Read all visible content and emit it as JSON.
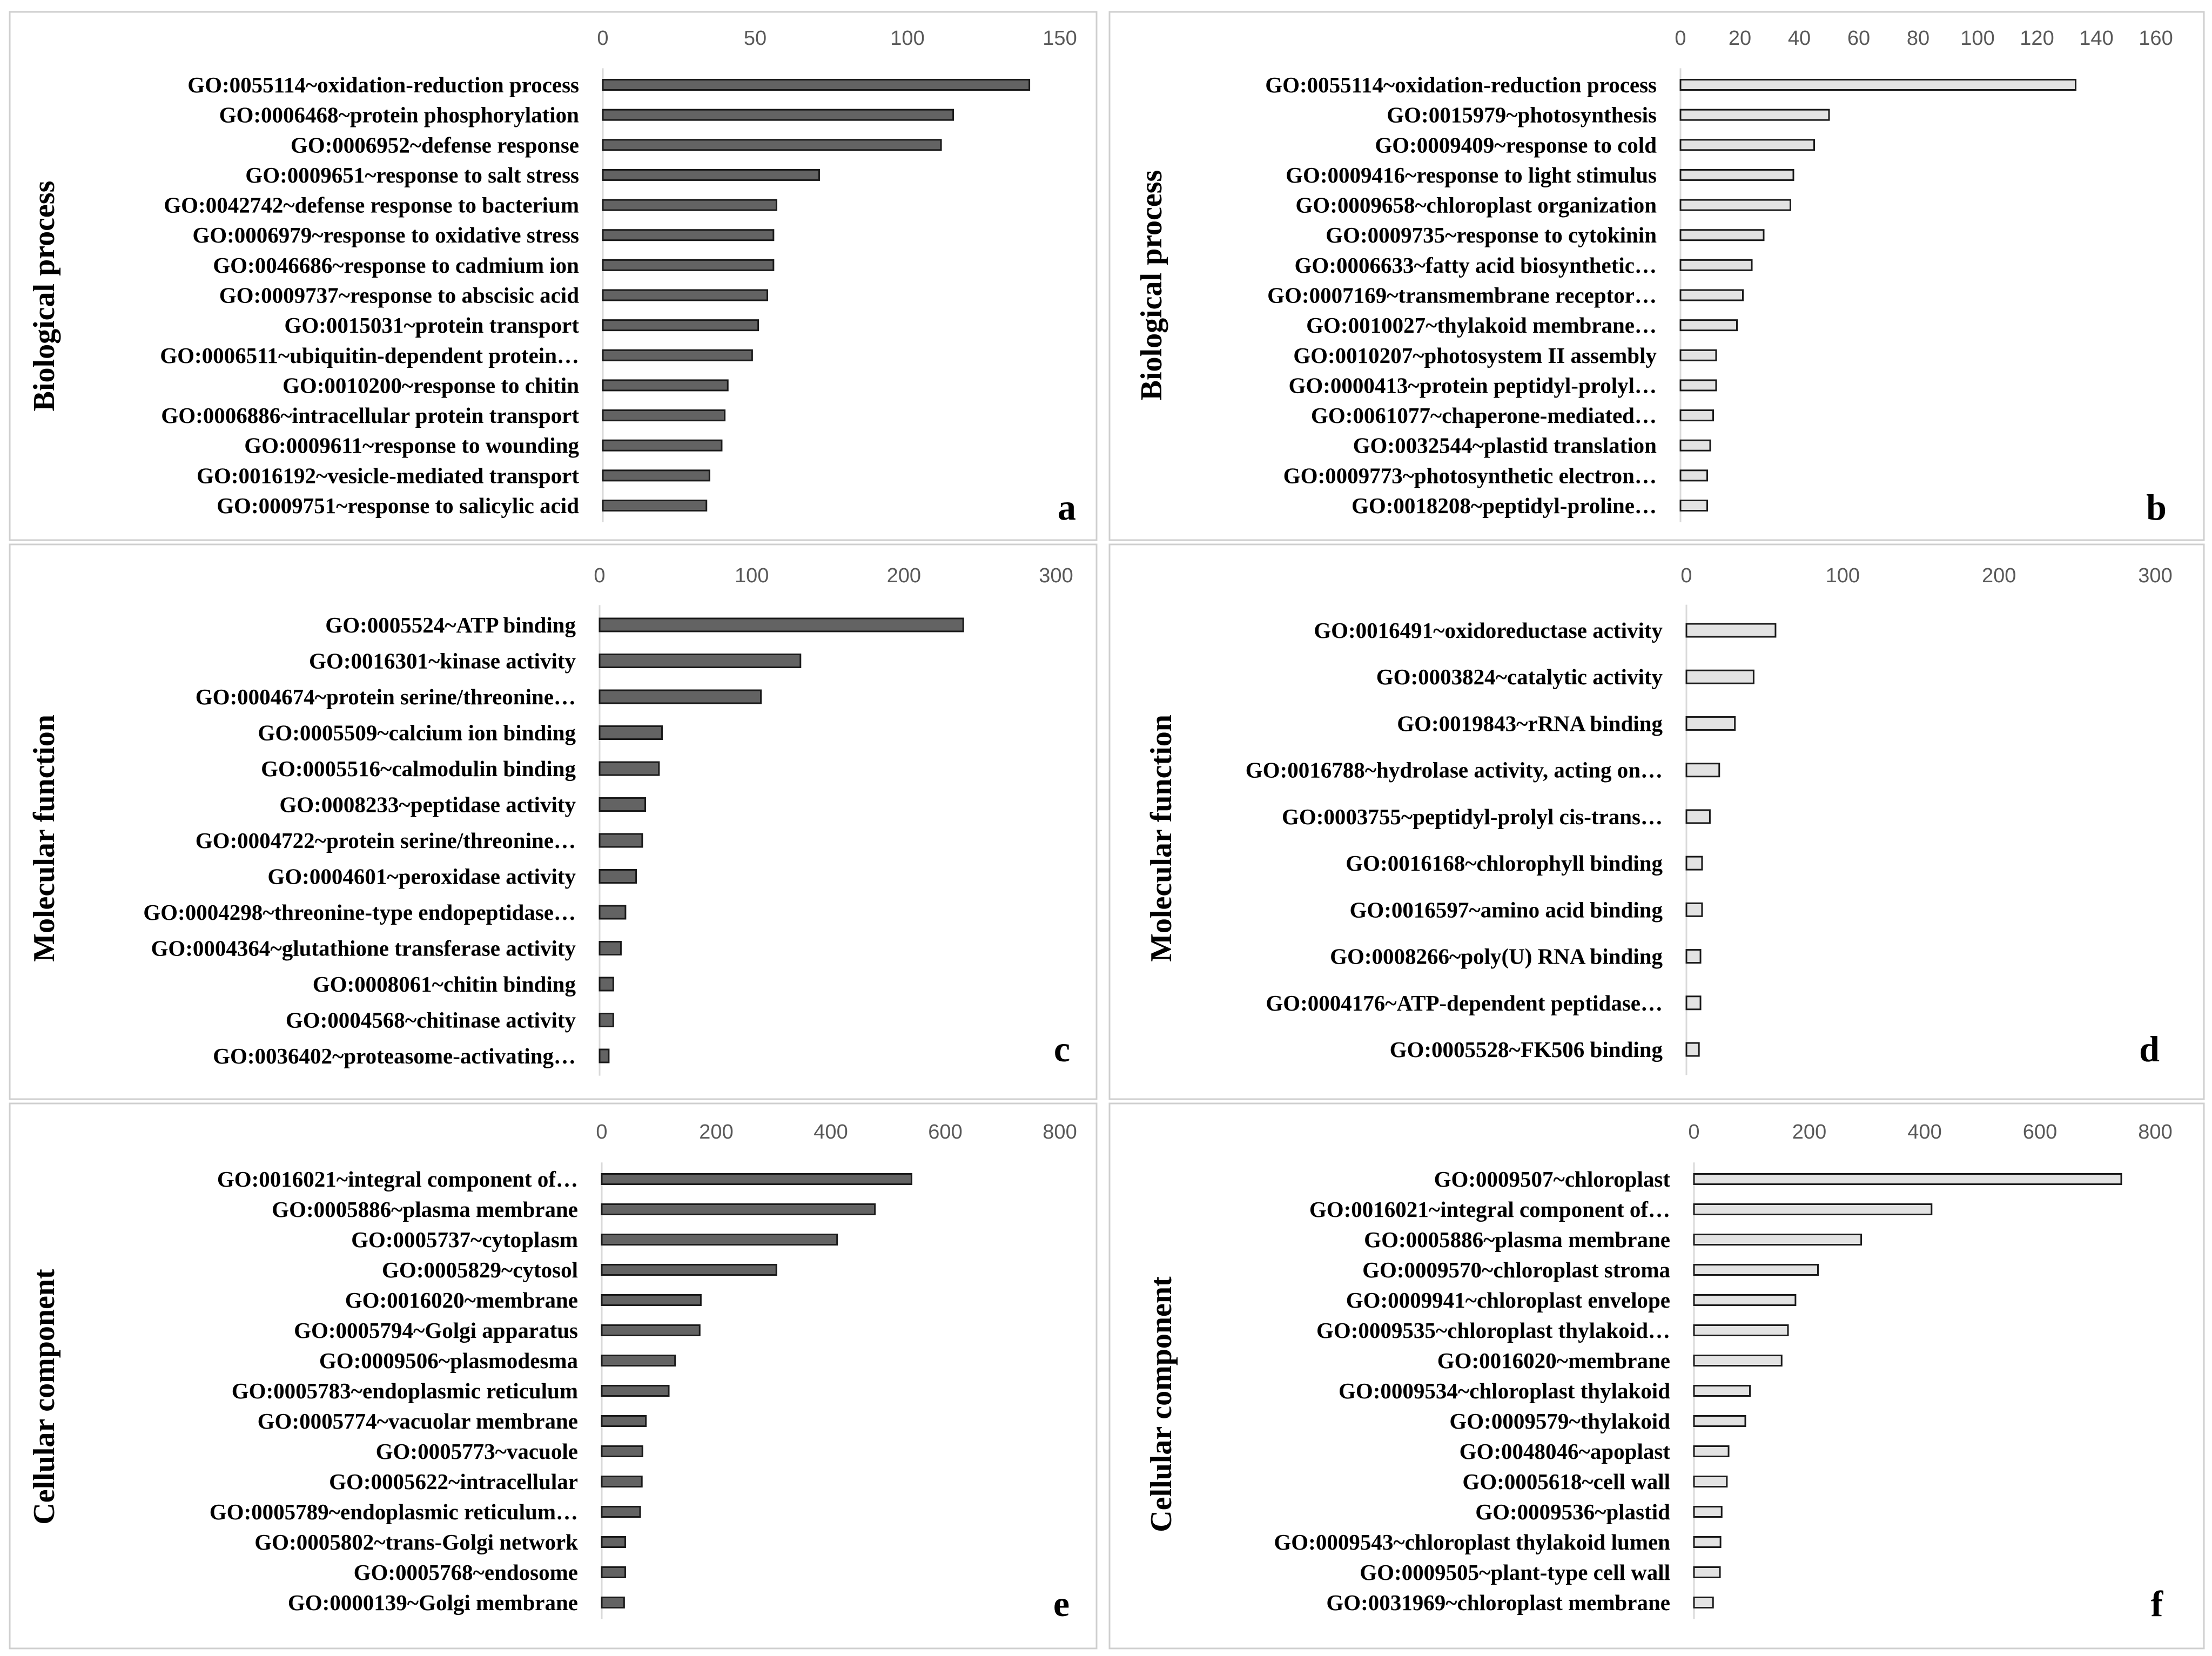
{
  "colors": {
    "dark_bar": "#636363",
    "light_bar": "#e3e3e3",
    "bar_stroke": "#1a1a1a",
    "axis": "#d9d9d9",
    "tick_text": "#595959",
    "panel_border": "#cfcfcf"
  },
  "chart_data": [
    {
      "type": "bar",
      "orientation": "horizontal",
      "panel_label": "a",
      "ylabel": "Biological process",
      "xlim": [
        0,
        150
      ],
      "xticks": [
        0,
        50,
        100,
        150
      ],
      "bar_style": "dark",
      "categories": [
        "GO:0055114~oxidation-reduction process",
        "GO:0006468~protein phosphorylation",
        "GO:0006952~defense response",
        "GO:0009651~response to salt stress",
        "GO:0042742~defense response to bacterium",
        "GO:0006979~response to oxidative stress",
        "GO:0046686~response to cadmium ion",
        "GO:0009737~response to abscisic acid",
        "GO:0015031~protein transport",
        "GO:0006511~ubiquitin-dependent protein…",
        "GO:0010200~response to chitin",
        "GO:0006886~intracellular protein transport",
        "GO:0009611~response to wounding",
        "GO:0016192~vesicle-mediated transport",
        "GO:0009751~response to salicylic acid"
      ],
      "values": [
        140,
        115,
        111,
        71,
        57,
        56,
        56,
        54,
        51,
        49,
        41,
        40,
        39,
        35,
        34
      ]
    },
    {
      "type": "bar",
      "orientation": "horizontal",
      "panel_label": "b",
      "ylabel": "Biological process",
      "xlim": [
        0,
        160
      ],
      "xticks": [
        0,
        20,
        40,
        60,
        80,
        100,
        120,
        140,
        160
      ],
      "bar_style": "light",
      "categories": [
        "GO:0055114~oxidation-reduction process",
        "GO:0015979~photosynthesis",
        "GO:0009409~response to cold",
        "GO:0009416~response to light stimulus",
        "GO:0009658~chloroplast organization",
        "GO:0009735~response to cytokinin",
        "GO:0006633~fatty acid biosynthetic…",
        "GO:0007169~transmembrane receptor…",
        "GO:0010027~thylakoid membrane…",
        "GO:0010207~photosystem II assembly",
        "GO:0000413~protein peptidyl-prolyl…",
        "GO:0061077~chaperone-mediated…",
        "GO:0032544~plastid translation",
        "GO:0009773~photosynthetic electron…",
        "GO:0018208~peptidyl-proline…"
      ],
      "values": [
        133,
        50,
        45,
        38,
        37,
        28,
        24,
        21,
        19,
        12,
        12,
        11,
        10,
        9,
        9
      ]
    },
    {
      "type": "bar",
      "orientation": "horizontal",
      "panel_label": "c",
      "ylabel": "Molecular function",
      "xlim": [
        0,
        300
      ],
      "xticks": [
        0,
        100,
        200,
        300
      ],
      "bar_style": "dark",
      "categories": [
        "GO:0005524~ATP binding",
        "GO:0016301~kinase activity",
        "GO:0004674~protein serine/threonine…",
        "GO:0005509~calcium ion binding",
        "GO:0005516~calmodulin binding",
        "GO:0008233~peptidase activity",
        "GO:0004722~protein serine/threonine…",
        "GO:0004601~peroxidase activity",
        "GO:0004298~threonine-type endopeptidase…",
        "GO:0004364~glutathione transferase activity",
        "GO:0008061~chitin binding",
        "GO:0004568~chitinase activity",
        "GO:0036402~proteasome-activating…"
      ],
      "values": [
        239,
        132,
        106,
        41,
        39,
        30,
        28,
        24,
        17,
        14,
        9,
        9,
        6
      ]
    },
    {
      "type": "bar",
      "orientation": "horizontal",
      "panel_label": "d",
      "ylabel": "Molecular function",
      "xlim": [
        0,
        300
      ],
      "xticks": [
        0,
        100,
        200,
        300
      ],
      "bar_style": "light",
      "categories": [
        "GO:0016491~oxidoreductase activity",
        "GO:0003824~catalytic activity",
        "GO:0019843~rRNA binding",
        "GO:0016788~hydrolase activity, acting on…",
        "GO:0003755~peptidyl-prolyl cis-trans…",
        "GO:0016168~chlorophyll binding",
        "GO:0016597~amino acid binding",
        "GO:0008266~poly(U) RNA binding",
        "GO:0004176~ATP-dependent peptidase…",
        "GO:0005528~FK506 binding"
      ],
      "values": [
        57,
        43,
        31,
        21,
        15,
        10,
        10,
        9,
        9,
        8
      ]
    },
    {
      "type": "bar",
      "orientation": "horizontal",
      "panel_label": "e",
      "ylabel": "Cellular component",
      "xlim": [
        0,
        800
      ],
      "xticks": [
        0,
        200,
        400,
        600,
        800
      ],
      "bar_style": "dark",
      "categories": [
        "GO:0016021~integral component of…",
        "GO:0005886~plasma membrane",
        "GO:0005737~cytoplasm",
        "GO:0005829~cytosol",
        "GO:0016020~membrane",
        "GO:0005794~Golgi apparatus",
        "GO:0009506~plasmodesma",
        "GO:0005783~endoplasmic reticulum",
        "GO:0005774~vacuolar membrane",
        "GO:0005773~vacuole",
        "GO:0005622~intracellular",
        "GO:0005789~endoplasmic reticulum…",
        "GO:0005802~trans-Golgi network",
        "GO:0005768~endosome",
        "GO:0000139~Golgi membrane"
      ],
      "values": [
        541,
        477,
        411,
        305,
        173,
        171,
        128,
        117,
        77,
        71,
        70,
        67,
        41,
        41,
        39
      ]
    },
    {
      "type": "bar",
      "orientation": "horizontal",
      "panel_label": "f",
      "ylabel": "Cellular  component",
      "xlim": [
        0,
        800
      ],
      "xticks": [
        0,
        200,
        400,
        600,
        800
      ],
      "bar_style": "light",
      "categories": [
        "GO:0009507~chloroplast",
        "GO:0016021~integral component of…",
        "GO:0005886~plasma membrane",
        "GO:0009570~chloroplast stroma",
        "GO:0009941~chloroplast envelope",
        "GO:0009535~chloroplast thylakoid…",
        "GO:0016020~membrane",
        "GO:0009534~chloroplast thylakoid",
        "GO:0009579~thylakoid",
        "GO:0048046~apoplast",
        "GO:0005618~cell wall",
        "GO:0009536~plastid",
        "GO:0009543~chloroplast thylakoid lumen",
        "GO:0009505~plant-type cell wall",
        "GO:0031969~chloroplast membrane"
      ],
      "values": [
        741,
        412,
        290,
        215,
        176,
        163,
        152,
        97,
        89,
        60,
        57,
        48,
        46,
        45,
        33
      ]
    }
  ]
}
